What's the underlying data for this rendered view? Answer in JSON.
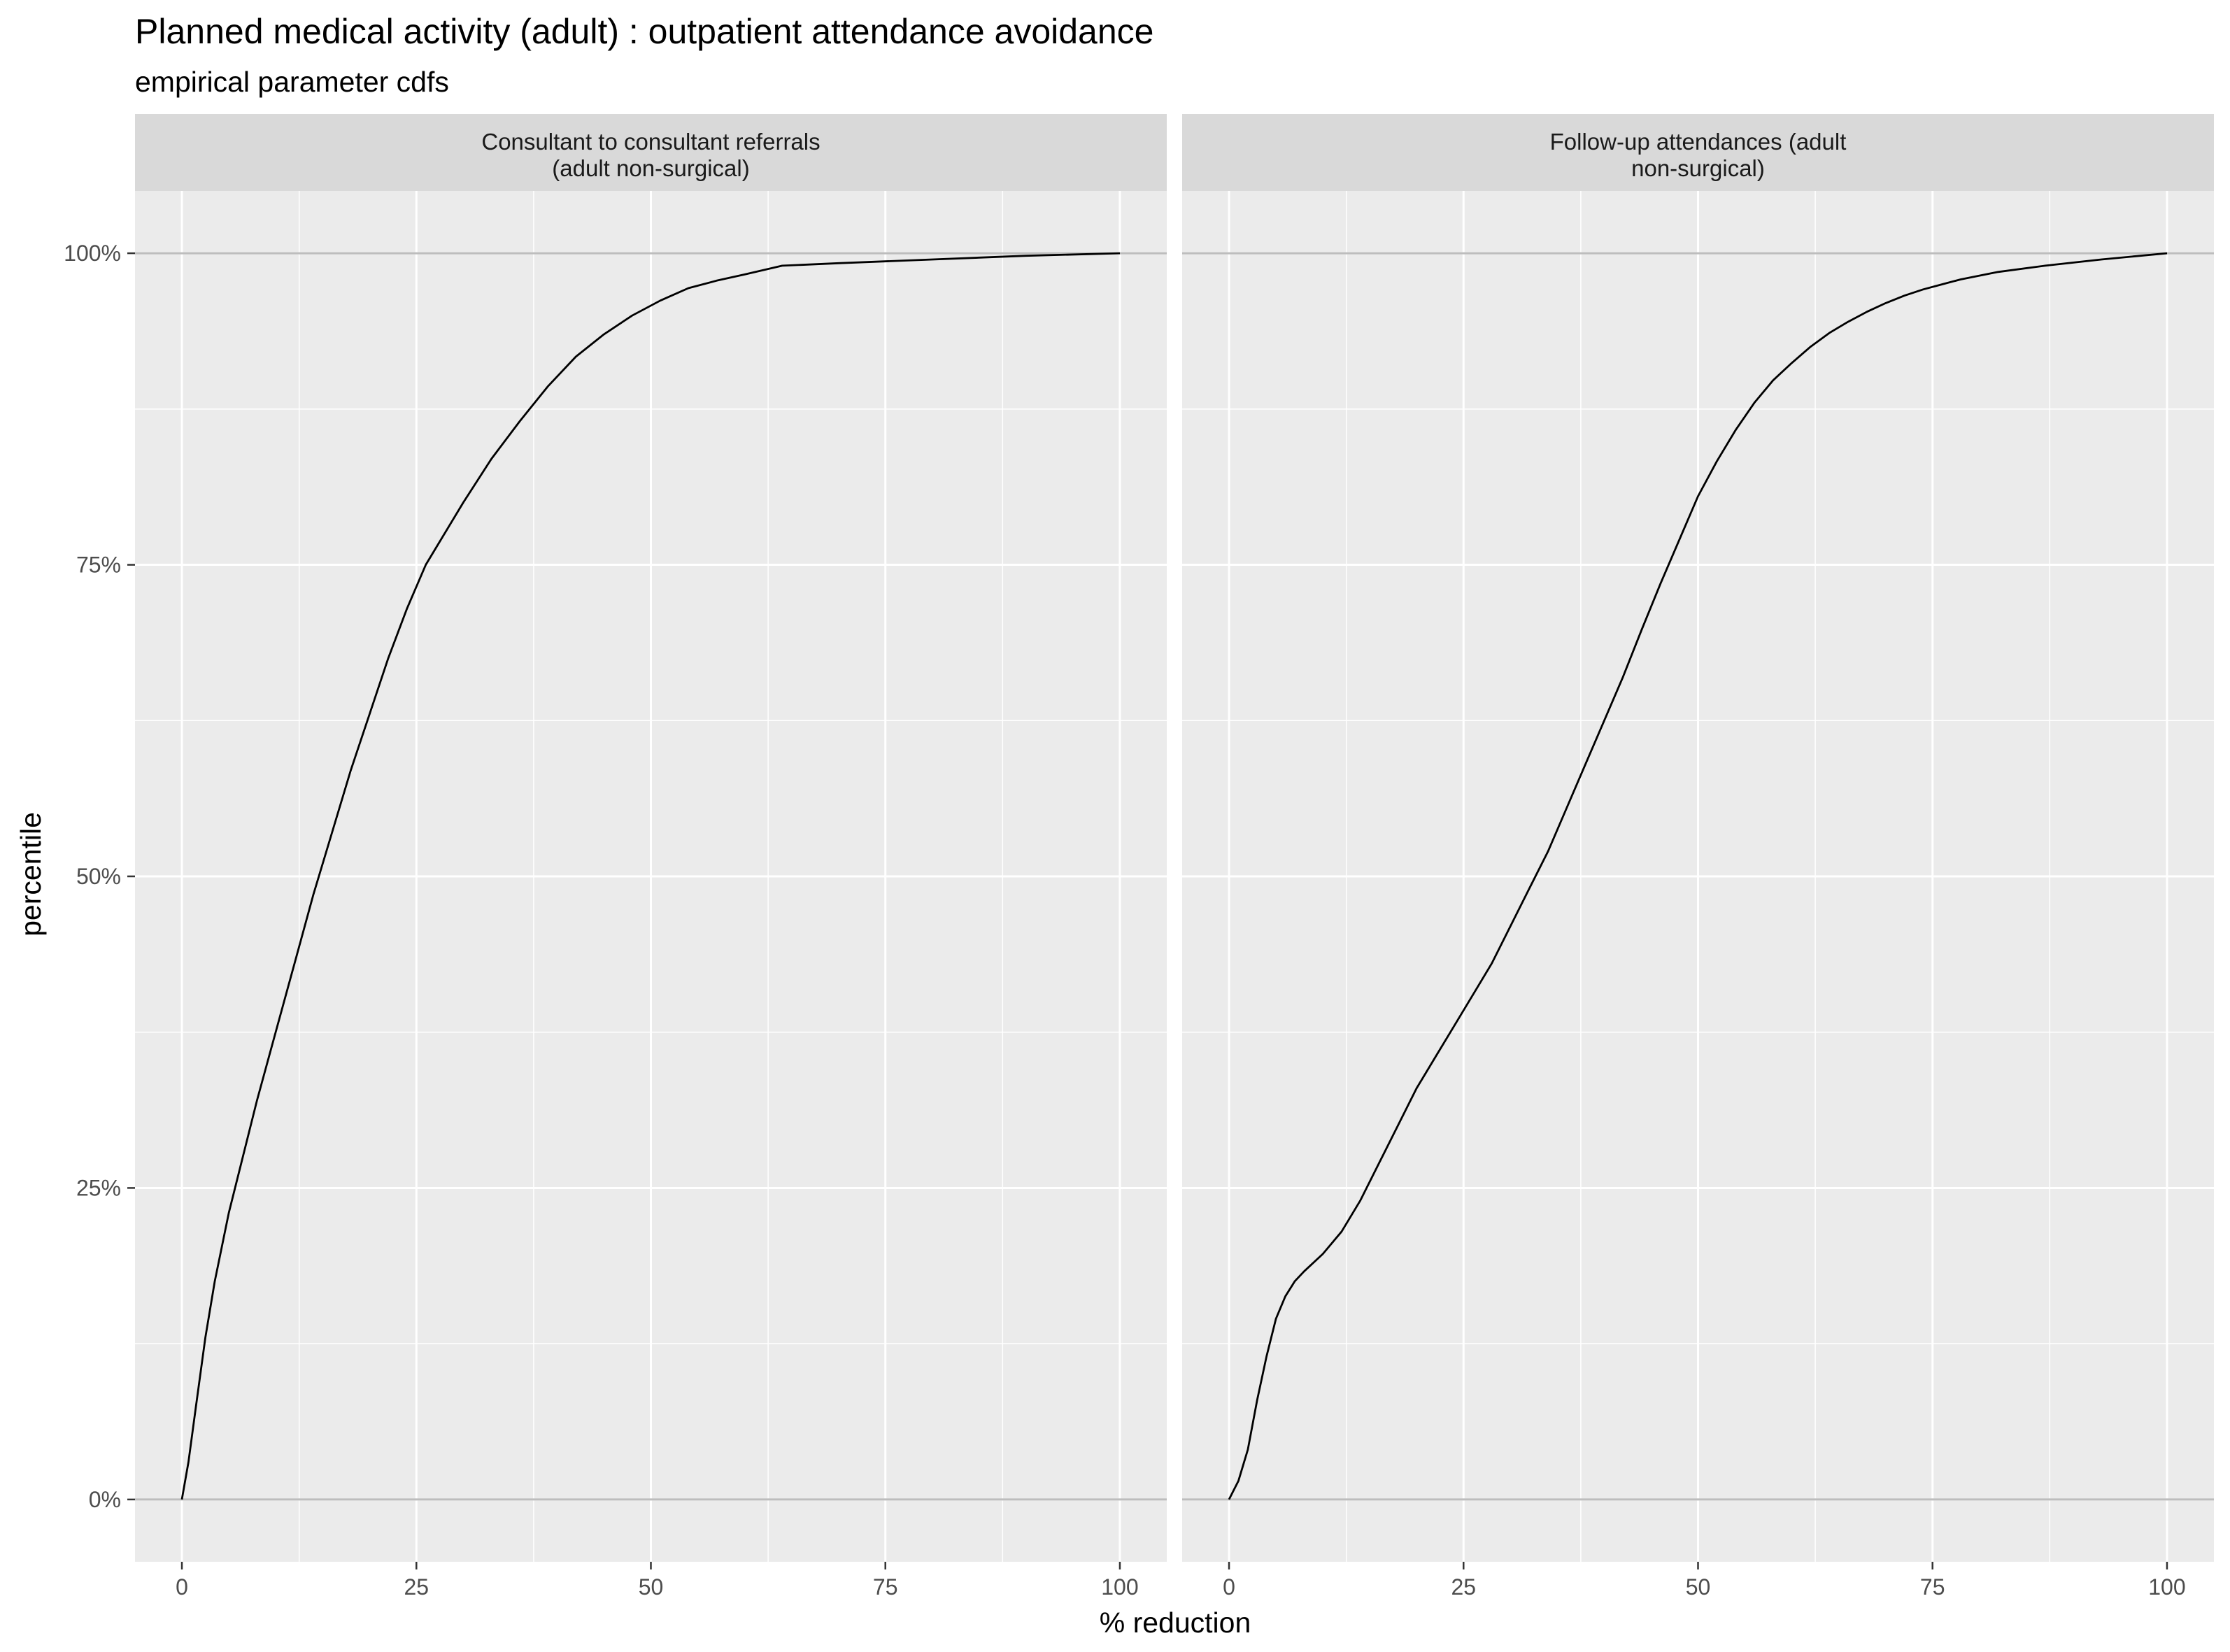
{
  "title": "Planned medical activity (adult) : outpatient attendance avoidance",
  "subtitle": "empirical parameter cdfs",
  "xlabel": "% reduction",
  "ylabel": "percentile",
  "colors": {
    "panel_background": "#ebebeb",
    "strip_background": "#d9d9d9",
    "grid_major": "#ffffff",
    "reference_line": "#bdbdbd",
    "series_line": "#000000",
    "tick_text": "#4d4d4d"
  },
  "chart_data": [
    {
      "type": "line",
      "facet_label_line1": "Consultant to consultant referrals",
      "facet_label_line2": "(adult non-surgical)",
      "xlim": [
        -5,
        105
      ],
      "ylim": [
        -0.05,
        1.05
      ],
      "x_ticks": [
        0,
        25,
        50,
        75,
        100
      ],
      "x_tick_labels": [
        "0",
        "25",
        "50",
        "75",
        "100"
      ],
      "y_ticks": [
        0,
        0.25,
        0.5,
        0.75,
        1
      ],
      "y_tick_labels": [
        "0%",
        "25%",
        "50%",
        "75%",
        "100%"
      ],
      "reference_lines_y": [
        0,
        1
      ],
      "grid": true,
      "x": [
        0,
        0.7,
        1.5,
        2.5,
        3.5,
        5,
        6.5,
        8,
        10,
        12,
        14,
        16,
        18,
        20,
        22,
        24,
        26,
        28,
        30,
        33,
        36,
        39,
        42,
        45,
        48,
        51,
        54,
        57,
        60,
        64,
        70,
        80,
        90,
        100
      ],
      "y": [
        0,
        0.03,
        0.075,
        0.13,
        0.175,
        0.23,
        0.275,
        0.32,
        0.375,
        0.43,
        0.485,
        0.535,
        0.585,
        0.63,
        0.675,
        0.715,
        0.75,
        0.775,
        0.8,
        0.835,
        0.865,
        0.893,
        0.917,
        0.935,
        0.95,
        0.962,
        0.972,
        0.978,
        0.983,
        0.99,
        0.992,
        0.995,
        0.998,
        1
      ]
    },
    {
      "type": "line",
      "facet_label_line1": "Follow-up attendances (adult",
      "facet_label_line2": "non-surgical)",
      "xlim": [
        -5,
        105
      ],
      "ylim": [
        -0.05,
        1.05
      ],
      "x_ticks": [
        0,
        25,
        50,
        75,
        100
      ],
      "x_tick_labels": [
        "0",
        "25",
        "50",
        "75",
        "100"
      ],
      "y_ticks": [
        0,
        0.25,
        0.5,
        0.75,
        1
      ],
      "y_tick_labels": [
        "0%",
        "25%",
        "50%",
        "75%",
        "100%"
      ],
      "reference_lines_y": [
        0,
        1
      ],
      "grid": true,
      "x": [
        0,
        1,
        2,
        3,
        4,
        5,
        6,
        7,
        8,
        10,
        12,
        14,
        16,
        18,
        20,
        22,
        24,
        26,
        28,
        30,
        32,
        34,
        36,
        38,
        40,
        42,
        44,
        46,
        48,
        50,
        52,
        54,
        56,
        58,
        60,
        62,
        64,
        66,
        68,
        70,
        72,
        74,
        76,
        78,
        82,
        87,
        93,
        100
      ],
      "y": [
        0,
        0.015,
        0.04,
        0.08,
        0.115,
        0.145,
        0.163,
        0.175,
        0.183,
        0.197,
        0.215,
        0.24,
        0.27,
        0.3,
        0.33,
        0.355,
        0.38,
        0.405,
        0.43,
        0.46,
        0.49,
        0.52,
        0.555,
        0.59,
        0.625,
        0.66,
        0.698,
        0.735,
        0.77,
        0.805,
        0.833,
        0.858,
        0.88,
        0.898,
        0.912,
        0.925,
        0.936,
        0.945,
        0.953,
        0.96,
        0.966,
        0.971,
        0.975,
        0.979,
        0.985,
        0.99,
        0.995,
        1
      ]
    }
  ]
}
